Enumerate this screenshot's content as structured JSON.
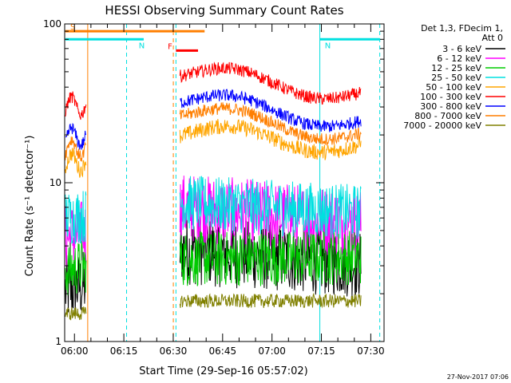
{
  "chart_data": {
    "type": "line",
    "title": "HESSI Observing Summary Count Rates",
    "ylabel": "Count Rate (s⁻¹ detector⁻¹)",
    "xlabel": "Start Time (29-Sep-16 05:57:02)",
    "yscale": "log",
    "ylim": [
      1,
      100
    ],
    "xlim_minutes": [
      0,
      97
    ],
    "x_tick_minute_offsets": [
      2.97,
      17.97,
      32.97,
      47.97,
      62.97,
      77.97,
      92.97
    ],
    "x_tick_labels": [
      "06:00",
      "06:15",
      "06:30",
      "06:45",
      "07:00",
      "07:15",
      "07:30"
    ],
    "y_tick_labels": [
      {
        "value": 1,
        "label": "1"
      },
      {
        "value": 10,
        "label": "10"
      },
      {
        "value": 100,
        "label": "100"
      }
    ],
    "legend_title_lines": [
      "Det 1,3, FDecim 1,",
      "Att 0"
    ],
    "legend_position": "right",
    "series": [
      {
        "name": "3 - 6 keV",
        "color": "#000000",
        "segments": [
          {
            "x": [
              0.2,
              6.5
            ],
            "y": [
              2.1,
              2.3
            ]
          },
          {
            "x": [
              35,
              90
            ],
            "y": [
              3.8,
              3.1
            ]
          }
        ]
      },
      {
        "name": "6 - 12 keV",
        "color": "#ff00ff",
        "segments": [
          {
            "x": [
              0.2,
              6.5
            ],
            "y": [
              4.5,
              4.8
            ]
          },
          {
            "x": [
              35,
              90
            ],
            "y": [
              7.0,
              5.5
            ]
          }
        ]
      },
      {
        "name": "12 - 25 keV",
        "color": "#00cc00",
        "segments": [
          {
            "x": [
              0.2,
              6.5
            ],
            "y": [
              2.8,
              3.0
            ]
          },
          {
            "x": [
              35,
              90
            ],
            "y": [
              3.3,
              3.4
            ]
          }
        ]
      },
      {
        "name": "25 - 50 keV",
        "color": "#00e0e0",
        "segments": [
          {
            "x": [
              0.2,
              6.5
            ],
            "y": [
              6.0,
              6.2
            ]
          },
          {
            "x": [
              35,
              90
            ],
            "y": [
              7.5,
              6.5
            ]
          }
        ]
      },
      {
        "name": "50 - 100 keV",
        "color": "#ffa500",
        "segments": [
          {
            "x": [
              0.2,
              6.5
            ],
            "y": [
              13,
              14
            ]
          },
          {
            "x": [
              35,
              90
            ],
            "y": [
              21,
              17
            ]
          }
        ]
      },
      {
        "name": "100 - 300 keV",
        "color": "#ff0000",
        "segments": [
          {
            "x": [
              0.2,
              6.5
            ],
            "y": [
              30,
              31
            ]
          },
          {
            "x": [
              35,
              90
            ],
            "y": [
              50,
              36
            ]
          }
        ]
      },
      {
        "name": "300 - 800 keV",
        "color": "#0000ff",
        "segments": [
          {
            "x": [
              0.2,
              6.5
            ],
            "y": [
              19,
              20
            ]
          },
          {
            "x": [
              35,
              90
            ],
            "y": [
              34,
              24
            ]
          }
        ]
      },
      {
        "name": "800 - 7000 keV",
        "color": "#ff7f00",
        "segments": [
          {
            "x": [
              0.2,
              6.5
            ],
            "y": [
              16,
              17
            ]
          },
          {
            "x": [
              35,
              90
            ],
            "y": [
              28,
              20
            ]
          }
        ]
      },
      {
        "name": "7000 - 20000 keV",
        "color": "#808000",
        "segments": [
          {
            "x": [
              0.2,
              6.5
            ],
            "y": [
              1.5,
              1.5
            ]
          },
          {
            "x": [
              35,
              90
            ],
            "y": [
              1.8,
              1.8
            ]
          }
        ]
      }
    ],
    "flags": [
      {
        "label": "S",
        "color": "#ff7f00",
        "x0": 0.2,
        "x1": 42.5
      },
      {
        "label": "N",
        "color": "#00e0e0",
        "x0": 0.2,
        "x1": 24
      },
      {
        "label": "N",
        "color": "#00e0e0",
        "x0": 77.5,
        "x1": 95.7
      },
      {
        "label": "F",
        "color": "#ff0000",
        "x0": 33.8,
        "x1": 40.5
      }
    ],
    "vertical_markers": [
      {
        "x": 7,
        "color": "#ff7f00",
        "style": "solid"
      },
      {
        "x": 18.8,
        "color": "#00e0e0",
        "style": "dashed"
      },
      {
        "x": 33,
        "color": "#ff7f00",
        "style": "dashed"
      },
      {
        "x": 33.8,
        "color": "#00e0e0",
        "style": "dashed"
      },
      {
        "x": 77.5,
        "color": "#00e0e0",
        "style": "solid"
      },
      {
        "x": 95.7,
        "color": "#00e0e0",
        "style": "dashed"
      }
    ]
  },
  "footer": {
    "date": "27-Nov-2017 07:06"
  }
}
